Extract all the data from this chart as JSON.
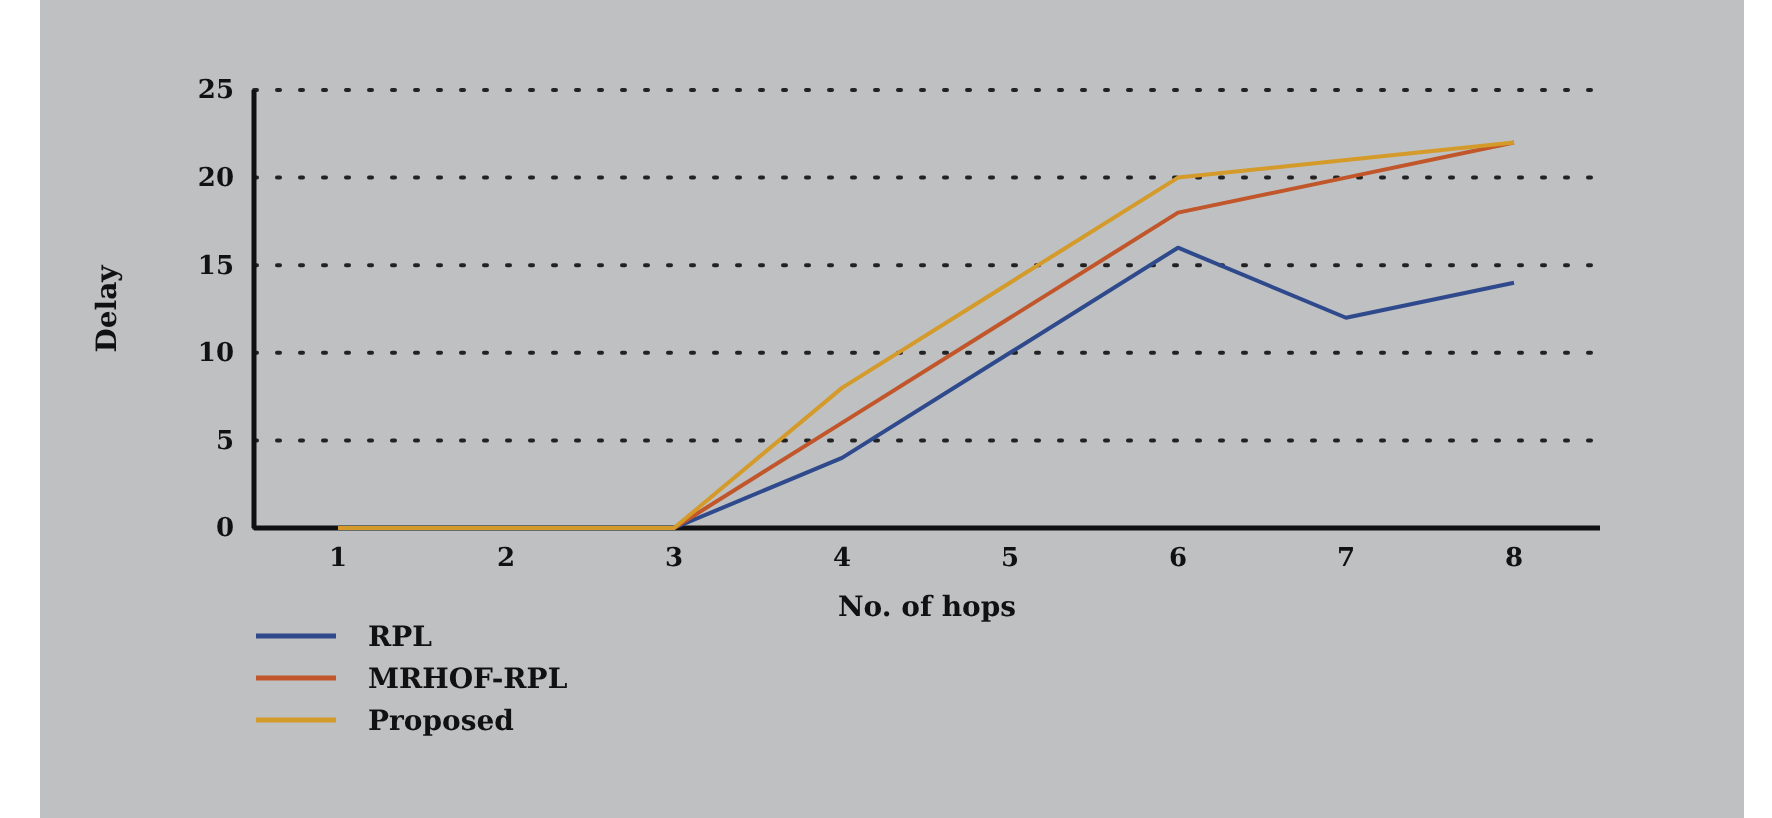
{
  "chart_data": {
    "type": "line",
    "xlabel": "No. of hops",
    "ylabel": "Delay",
    "categories": [
      "1",
      "2",
      "3",
      "4",
      "5",
      "6",
      "7",
      "8"
    ],
    "series": [
      {
        "name": "RPL",
        "color": "#2e4a8c",
        "values": [
          0,
          0,
          0,
          4,
          10,
          16,
          12,
          14
        ]
      },
      {
        "name": "MRHOF-RPL",
        "color": "#c0562a",
        "values": [
          0,
          0,
          0,
          6,
          12,
          18,
          20,
          22
        ]
      },
      {
        "name": "Proposed",
        "color": "#d49a2a",
        "values": [
          0,
          0,
          0,
          8,
          14,
          20,
          21,
          22
        ]
      }
    ],
    "ylim": [
      0,
      25
    ],
    "yticks": [
      0,
      5,
      10,
      15,
      20,
      25
    ],
    "grid": "y",
    "legend": "bottom left",
    "marker": "none",
    "line_style": "solid"
  }
}
